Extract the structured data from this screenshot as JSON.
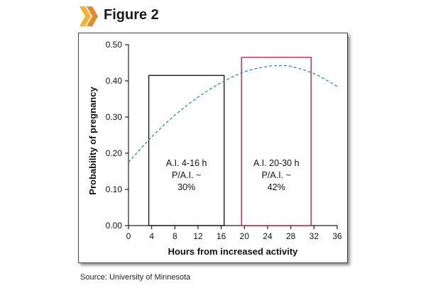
{
  "figure": {
    "title": "Figure 2",
    "chevron_colors": [
      "#f2b233",
      "#e8892a"
    ],
    "title_box_color": "#ffffff"
  },
  "source_text": "Source: University of Minnesota",
  "chart_data": {
    "type": "line",
    "xlabel": "Hours from increased activity",
    "ylabel": "Probability of pregnancy",
    "xlim": [
      0,
      36
    ],
    "ylim": [
      0,
      0.5
    ],
    "x_ticks": [
      0,
      4,
      8,
      12,
      16,
      20,
      24,
      28,
      32,
      36
    ],
    "y_ticks": [
      "0.00",
      "0.10",
      "0.20",
      "0.30",
      "0.40",
      "0.50"
    ],
    "series": [
      {
        "style": "dashed",
        "color": "#3a8fc9",
        "x": [
          0,
          4,
          8,
          12,
          16,
          20,
          24,
          26,
          28,
          32,
          36
        ],
        "y": [
          0.175,
          0.245,
          0.305,
          0.355,
          0.395,
          0.425,
          0.44,
          0.442,
          0.44,
          0.42,
          0.385
        ]
      }
    ],
    "annotations": [
      {
        "x_range": [
          3.5,
          16.5
        ],
        "y_top": 0.415,
        "border_color": "#1a1a1a",
        "lines": [
          "A.I. 4-16 h",
          "P/A.I. ~",
          "30%"
        ]
      },
      {
        "x_range": [
          19.5,
          31.5
        ],
        "y_top": 0.465,
        "border_color": "#c8234c",
        "lines": [
          "A.I. 20-30 h",
          "P/A.I. ~",
          "42%"
        ]
      }
    ]
  }
}
